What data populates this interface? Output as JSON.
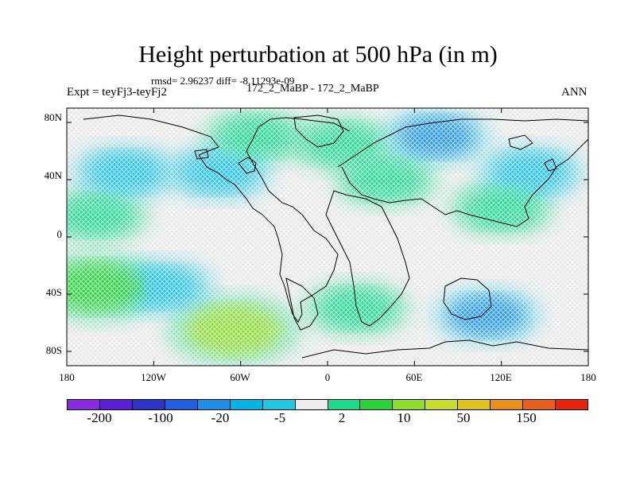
{
  "title": "Height perturbation at 500 hPa (in m)",
  "stats": "rmsd= 2.96237 diff= -8.11293e-09",
  "expt": "Expt = teyFj3-teyFj2",
  "runs": "172_2_MaBP - 172_2_MaBP",
  "season": "ANN",
  "lat_labels": [
    "80N",
    "40N",
    "0",
    "40S",
    "80S"
  ],
  "lon_labels": [
    "180",
    "120W",
    "60W",
    "0",
    "60E",
    "120E",
    "180"
  ],
  "colorbar": {
    "colors": [
      "#8a2be2",
      "#5a1fd6",
      "#2f34c8",
      "#1f5fe0",
      "#1e90e8",
      "#00b4e6",
      "#1fc8e0",
      "#ececec",
      "#1ed890",
      "#27d335",
      "#8fdc2a",
      "#c8dc2a",
      "#e0c21c",
      "#e8901c",
      "#e6601c",
      "#e8220c"
    ],
    "tick_labels": [
      "-200",
      "-100",
      "-20",
      "-5",
      "2",
      "10",
      "50",
      "150"
    ]
  },
  "map": {
    "background": "#e8e8e8",
    "anomalies": [
      {
        "lon": -140,
        "lat": 45,
        "level": -5,
        "color": "#1ec0e8"
      },
      {
        "lon": -115,
        "lat": -35,
        "level": -5,
        "color": "#1ec0e8"
      },
      {
        "lon": -65,
        "lat": -65,
        "level": 10,
        "color": "#8fdc2a"
      },
      {
        "lon": -160,
        "lat": -35,
        "level": 10,
        "color": "#27d335"
      },
      {
        "lon": 75,
        "lat": 70,
        "level": -5,
        "color": "#1e90e8"
      },
      {
        "lon": 140,
        "lat": 45,
        "level": -5,
        "color": "#1ec0e8"
      },
      {
        "lon": 110,
        "lat": -55,
        "level": -5,
        "color": "#1e90e8"
      },
      {
        "lon": -75,
        "lat": 45,
        "level": -5,
        "color": "#1ec0e8"
      },
      {
        "lon": 10,
        "lat": 65,
        "level": 2,
        "color": "#1ed890"
      },
      {
        "lon": 40,
        "lat": 40,
        "level": 2,
        "color": "#1ed890"
      },
      {
        "lon": -50,
        "lat": 70,
        "level": 2,
        "color": "#1ed890"
      },
      {
        "lon": 120,
        "lat": 20,
        "level": 2,
        "color": "#1ed890"
      },
      {
        "lon": 20,
        "lat": -50,
        "level": 2,
        "color": "#1ed890"
      },
      {
        "lon": -160,
        "lat": 15,
        "level": 2,
        "color": "#1ed890"
      }
    ]
  }
}
